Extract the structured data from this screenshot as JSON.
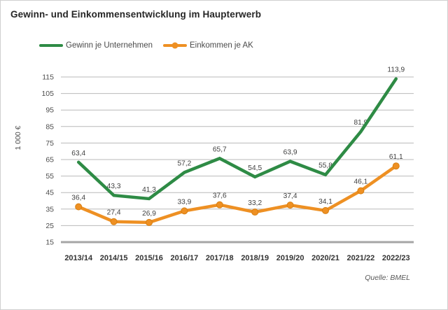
{
  "title": "Gewinn- und Einkommensentwicklung im Haupterwerb",
  "source_note": "Quelle: BMEL",
  "chart_data": {
    "type": "line",
    "title": "Gewinn- und Einkommensentwicklung im Haupterwerb",
    "categories": [
      "2013/14",
      "2014/15",
      "2015/16",
      "2016/17",
      "2017/18",
      "2018/19",
      "2019/20",
      "2020/21",
      "2021/22",
      "2022/23"
    ],
    "series": [
      {
        "name": "Gewinn je Unternehmen",
        "color": "#2e8b45",
        "marker": "none",
        "values": [
          63.4,
          43.3,
          41.3,
          57.2,
          65.7,
          54.5,
          63.9,
          55.8,
          81.9,
          113.9
        ]
      },
      {
        "name": "Einkommen je AK",
        "color": "#ee9023",
        "marker_stroke": "#d87f10",
        "marker": "circle",
        "values": [
          36.4,
          27.4,
          26.9,
          33.9,
          37.6,
          33.2,
          37.4,
          34.1,
          46.1,
          61.1
        ]
      }
    ],
    "ylabel": "1 000 €",
    "ylim": [
      15,
      115
    ],
    "ytick_step": 10,
    "yticks": [
      15,
      25,
      35,
      45,
      55,
      65,
      75,
      85,
      95,
      105,
      115
    ],
    "grid": true,
    "legend_position": "top-left",
    "decimal_separator": ",",
    "data_labels": true
  }
}
